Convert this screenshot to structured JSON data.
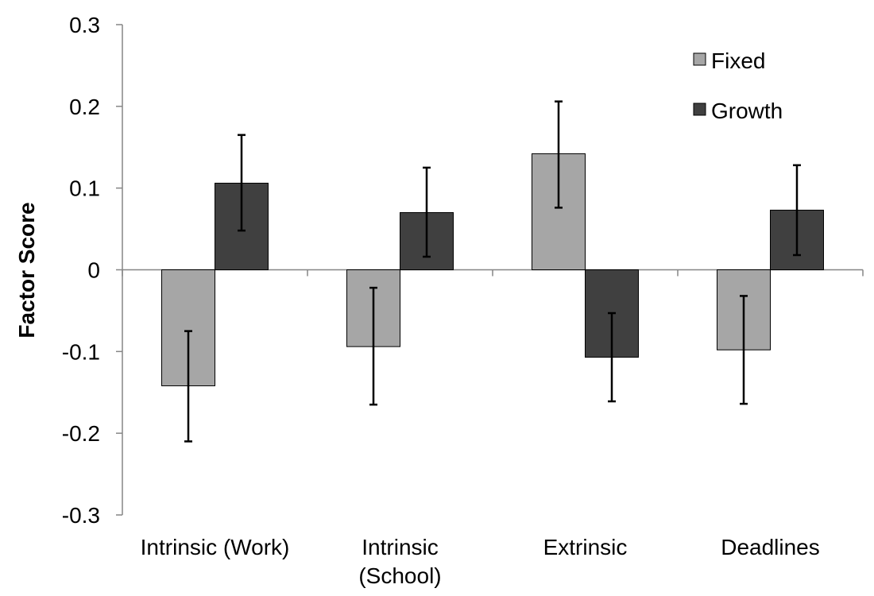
{
  "chart_data": {
    "type": "bar",
    "title": "",
    "xlabel": "",
    "ylabel": "Factor Score",
    "ylim": [
      -0.3,
      0.3
    ],
    "yticks": [
      0.3,
      0.2,
      0.1,
      0,
      -0.1,
      -0.2,
      -0.3
    ],
    "ytick_labels": [
      "0.3",
      "0.2",
      "0.1",
      "0",
      "-0.1",
      "-0.2",
      "-0.3"
    ],
    "categories": [
      [
        "Intrinsic (Work)"
      ],
      [
        "Intrinsic",
        "(School)"
      ],
      [
        "Extrinsic"
      ],
      [
        "Deadlines"
      ]
    ],
    "series": [
      {
        "name": "Fixed",
        "color": "#a6a6a6",
        "values": [
          -0.142,
          -0.094,
          0.142,
          -0.098
        ],
        "error_low": [
          -0.21,
          -0.165,
          0.076,
          -0.164
        ],
        "error_high": [
          -0.075,
          -0.022,
          0.206,
          -0.032
        ]
      },
      {
        "name": "Growth",
        "color": "#404040",
        "values": [
          0.106,
          0.07,
          -0.107,
          0.073
        ],
        "error_low": [
          0.048,
          0.016,
          -0.161,
          0.018
        ],
        "error_high": [
          0.165,
          0.125,
          -0.053,
          0.128
        ]
      }
    ],
    "grid": false,
    "legend_position": "top-right",
    "axis_color": "#868686",
    "bar_edge_color": "#000000"
  }
}
